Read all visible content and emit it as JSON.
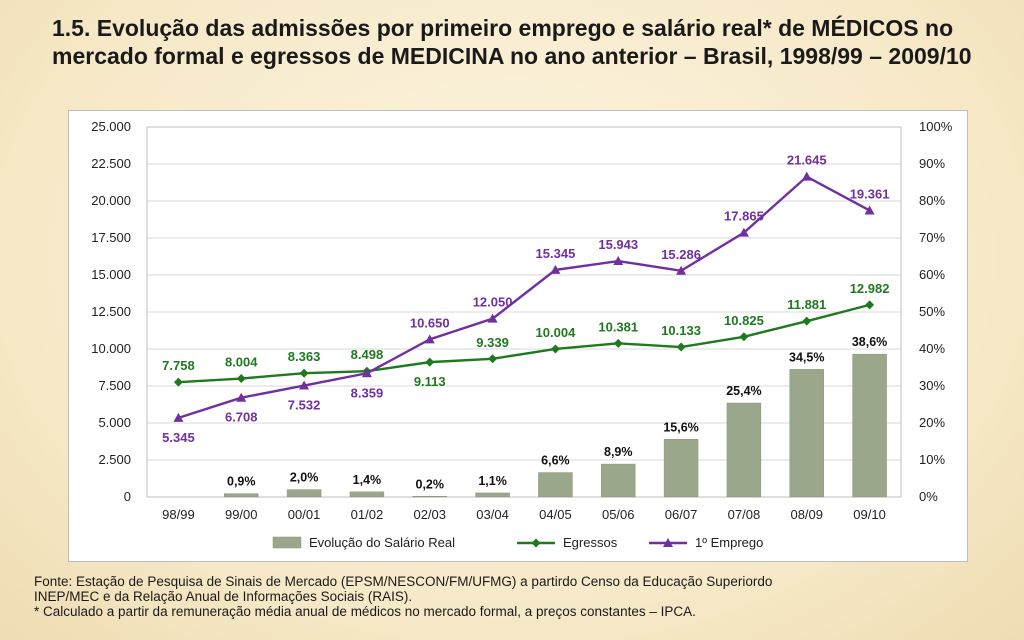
{
  "title": "1.5.  Evolução das admissões por primeiro emprego e salário real* de MÉDICOS no mercado formal e egressos de MEDICINA no ano anterior – Brasil, 1998/99 – 2009/10",
  "chart_data": {
    "type": "bar",
    "categories": [
      "98/99",
      "99/00",
      "00/01",
      "01/02",
      "02/03",
      "03/04",
      "04/05",
      "05/06",
      "06/07",
      "07/08",
      "08/09",
      "09/10"
    ],
    "ylim_left": [
      0,
      25000
    ],
    "ylim_right": [
      0,
      100
    ],
    "left_ticks": [
      "0",
      "2.500",
      "5.000",
      "7.500",
      "10.000",
      "12.500",
      "15.000",
      "17.500",
      "20.000",
      "22.500",
      "25.000"
    ],
    "right_ticks": [
      "0%",
      "10%",
      "20%",
      "30%",
      "40%",
      "50%",
      "60%",
      "70%",
      "80%",
      "90%",
      "100%"
    ],
    "grid": true,
    "legend_position": "bottom",
    "series": [
      {
        "name": "Evolução do Salário Real",
        "kind": "bar",
        "axis": "right",
        "color": "#9aa78a",
        "values": [
          null,
          0.9,
          2.0,
          1.4,
          0.2,
          1.1,
          6.6,
          8.9,
          15.6,
          25.4,
          34.5,
          38.6
        ],
        "labels": [
          "",
          "0,9%",
          "2,0%",
          "1,4%",
          "0,2%",
          "1,1%",
          "6,6%",
          "8,9%",
          "15,6%",
          "25,4%",
          "34,5%",
          "38,6%"
        ]
      },
      {
        "name": "Egressos",
        "kind": "line",
        "axis": "left",
        "color": "#1f7a1f",
        "values": [
          7758,
          8004,
          8363,
          8498,
          9113,
          9339,
          10004,
          10381,
          10133,
          10825,
          11881,
          12982
        ],
        "labels": [
          "7.758",
          "8.004",
          "8.363",
          "8.498",
          "9.113",
          "9.339",
          "10.004",
          "10.381",
          "10.133",
          "10.825",
          "11.881",
          "12.982"
        ]
      },
      {
        "name": "1º Emprego",
        "kind": "line",
        "axis": "left",
        "color": "#7030a0",
        "values": [
          5345,
          6708,
          7532,
          8359,
          10650,
          12050,
          15345,
          15943,
          15286,
          17865,
          21645,
          19361
        ],
        "labels": [
          "5.345",
          "6.708",
          "7.532",
          "8.359",
          "10.650",
          "12.050",
          "15.345",
          "15.943",
          "15.286",
          "17.865",
          "21.645",
          "19.361"
        ]
      }
    ]
  },
  "source": {
    "line1": "Fonte: Estação de Pesquisa de Sinais de Mercado (EPSM/NESCON/FM/UFMG) a partirdo Censo da Educação Superiordo",
    "line2": "INEP/MEC e da  Relação Anual de Informações Sociais (RAIS).",
    "line3": "* Calculado a partir da remuneração média anual de médicos no mercado formal, a preços constantes – IPCA."
  }
}
